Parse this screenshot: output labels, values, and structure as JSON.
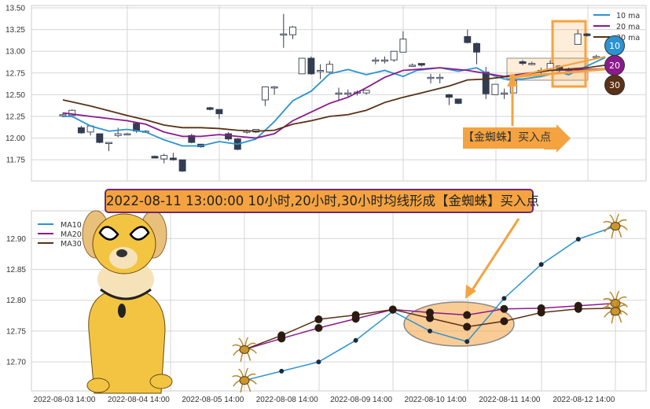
{
  "colors": {
    "ma10": "#2b93d1",
    "ma20": "#8b1a8b",
    "ma30": "#5a3216",
    "candle_down": "#333c50",
    "accent": "#f4a340",
    "banner_border": "#6b2a73"
  },
  "annotation": {
    "banner": "2022-08-11 13:00:00 10小时,20小时,30小时均线形成【金蜘蛛】买入点",
    "buy_label": "【金蜘蛛】买入点",
    "badges": [
      "10",
      "20",
      "30"
    ]
  },
  "chart_data": [
    {
      "type": "candlestick",
      "ylim": [
        11.55,
        13.52
      ],
      "yticks": [
        "13.50",
        "13.25",
        "13.00",
        "12.75",
        "12.50",
        "12.25",
        "12.00",
        "11.75"
      ],
      "ytick_values": [
        13.5,
        13.25,
        13.0,
        12.75,
        12.5,
        12.25,
        12.0,
        11.75
      ],
      "grid": true,
      "legend": {
        "placement": "top-right",
        "entries": [
          "10 ma",
          "20 ma",
          "30 ma"
        ]
      },
      "candles_ohlc": [
        [
          12.26,
          12.29,
          12.24,
          12.27
        ],
        [
          12.26,
          12.33,
          12.24,
          12.32
        ],
        [
          12.12,
          12.14,
          12.05,
          12.06
        ],
        [
          12.07,
          12.15,
          12.03,
          12.14
        ],
        [
          12.05,
          12.05,
          11.94,
          11.95
        ],
        [
          11.95,
          11.95,
          11.85,
          11.95
        ],
        [
          12.03,
          12.12,
          12.01,
          12.05
        ],
        [
          12.05,
          12.06,
          12.04,
          12.05
        ],
        [
          12.17,
          12.18,
          12.06,
          12.08
        ],
        [
          12.08,
          12.09,
          12.06,
          12.08
        ],
        [
          11.79,
          11.8,
          11.77,
          11.77
        ],
        [
          11.76,
          11.82,
          11.71,
          11.8
        ],
        [
          11.77,
          11.83,
          11.74,
          11.75
        ],
        [
          11.75,
          11.75,
          11.61,
          11.62
        ],
        [
          12.03,
          12.05,
          11.94,
          11.95
        ],
        [
          11.93,
          11.93,
          11.89,
          11.9
        ],
        [
          12.35,
          12.36,
          12.32,
          12.33
        ],
        [
          12.33,
          12.33,
          12.22,
          12.28
        ],
        [
          12.05,
          12.07,
          11.97,
          11.99
        ],
        [
          11.99,
          12.0,
          11.86,
          11.87
        ],
        [
          12.08,
          12.1,
          12.05,
          12.08
        ],
        [
          12.07,
          12.1,
          12.06,
          12.1
        ],
        [
          12.44,
          12.59,
          12.37,
          12.59
        ],
        [
          12.59,
          12.6,
          12.5,
          12.59
        ],
        [
          13.2,
          13.43,
          13.04,
          13.2
        ],
        [
          13.19,
          13.29,
          13.14,
          13.28
        ],
        [
          12.74,
          12.92,
          12.74,
          12.92
        ],
        [
          12.92,
          12.94,
          12.73,
          12.74
        ],
        [
          12.78,
          12.85,
          12.68,
          12.78
        ],
        [
          12.76,
          12.89,
          12.75,
          12.85
        ],
        [
          12.52,
          12.58,
          12.44,
          12.52
        ],
        [
          12.52,
          12.56,
          12.48,
          12.52
        ],
        [
          12.53,
          12.55,
          12.49,
          12.53
        ],
        [
          12.52,
          12.55,
          12.5,
          12.55
        ],
        [
          12.9,
          12.93,
          12.85,
          12.9
        ],
        [
          12.9,
          12.94,
          12.86,
          12.9
        ],
        [
          12.9,
          13.0,
          12.88,
          13.0
        ],
        [
          12.99,
          13.23,
          12.99,
          13.14
        ],
        [
          12.84,
          12.86,
          12.82,
          12.84
        ],
        [
          12.86,
          12.86,
          12.82,
          12.84
        ],
        [
          12.7,
          12.74,
          12.63,
          12.7
        ],
        [
          12.7,
          12.74,
          12.63,
          12.7
        ],
        [
          12.5,
          12.51,
          12.38,
          12.47
        ],
        [
          12.45,
          12.45,
          12.39,
          12.4
        ],
        [
          13.17,
          13.25,
          13.09,
          13.1
        ],
        [
          13.09,
          13.1,
          12.85,
          12.99
        ],
        [
          12.76,
          12.82,
          12.45,
          12.51
        ],
        [
          12.5,
          12.62,
          12.5,
          12.62
        ],
        [
          12.52,
          12.57,
          12.45,
          12.52
        ],
        [
          12.52,
          12.66,
          12.52,
          12.66
        ],
        [
          12.88,
          12.9,
          12.84,
          12.86
        ],
        [
          12.86,
          12.88,
          12.84,
          12.86
        ],
        [
          12.78,
          12.81,
          12.72,
          12.78
        ],
        [
          12.78,
          12.9,
          12.78,
          12.86
        ],
        [
          12.83,
          12.84,
          12.74,
          12.8
        ],
        [
          12.79,
          12.81,
          12.77,
          12.79
        ],
        [
          13.08,
          13.25,
          13.08,
          13.2
        ],
        [
          13.2,
          13.21,
          13.17,
          13.18
        ],
        [
          12.94,
          12.96,
          12.92,
          12.94
        ]
      ],
      "series": [
        {
          "name": "10 ma",
          "points": [
            [
              0,
              12.25
            ],
            [
              1,
              12.25
            ],
            [
              3,
              12.14
            ],
            [
              5,
              12.08
            ],
            [
              7,
              12.1
            ],
            [
              9,
              12.07
            ],
            [
              11,
              11.98
            ],
            [
              13,
              11.91
            ],
            [
              15,
              11.91
            ],
            [
              17,
              11.96
            ],
            [
              19,
              11.93
            ],
            [
              21,
              11.99
            ],
            [
              23,
              12.19
            ],
            [
              25,
              12.43
            ],
            [
              27,
              12.54
            ],
            [
              29,
              12.74
            ],
            [
              31,
              12.79
            ],
            [
              33,
              12.73
            ],
            [
              35,
              12.78
            ],
            [
              37,
              12.71
            ],
            [
              38.5,
              12.78
            ],
            [
              41,
              12.81
            ],
            [
              43,
              12.77
            ],
            [
              45,
              12.81
            ],
            [
              46,
              12.75
            ],
            [
              48,
              12.68
            ],
            [
              50,
              12.68
            ],
            [
              52,
              12.71
            ],
            [
              54,
              12.76
            ],
            [
              55,
              12.73
            ],
            [
              57,
              12.83
            ],
            [
              59,
              12.93
            ]
          ]
        },
        {
          "name": "20 ma",
          "points": [
            [
              0,
              12.29
            ],
            [
              3,
              12.25
            ],
            [
              7,
              12.2
            ],
            [
              9,
              12.16
            ],
            [
              11,
              12.07
            ],
            [
              13,
              12.02
            ],
            [
              15,
              12.02
            ],
            [
              17,
              12.04
            ],
            [
              19,
              12.02
            ],
            [
              21,
              12.0
            ],
            [
              23,
              12.05
            ],
            [
              25,
              12.2
            ],
            [
              27,
              12.3
            ],
            [
              29,
              12.4
            ],
            [
              31,
              12.47
            ],
            [
              33,
              12.58
            ],
            [
              35,
              12.7
            ],
            [
              37,
              12.78
            ],
            [
              41,
              12.81
            ],
            [
              44,
              12.78
            ],
            [
              48,
              12.71
            ],
            [
              50,
              12.74
            ],
            [
              53,
              12.78
            ],
            [
              57,
              12.79
            ],
            [
              59,
              12.8
            ]
          ]
        },
        {
          "name": "30 ma",
          "points": [
            [
              0,
              12.44
            ],
            [
              3,
              12.37
            ],
            [
              7,
              12.26
            ],
            [
              9,
              12.21
            ],
            [
              11,
              12.15
            ],
            [
              13,
              12.12
            ],
            [
              15,
              12.12
            ],
            [
              17,
              12.11
            ],
            [
              19,
              12.09
            ],
            [
              21,
              12.08
            ],
            [
              23,
              12.09
            ],
            [
              25,
              12.16
            ],
            [
              27,
              12.2
            ],
            [
              29,
              12.25
            ],
            [
              31,
              12.27
            ],
            [
              33,
              12.32
            ],
            [
              35,
              12.41
            ],
            [
              37,
              12.47
            ],
            [
              39,
              12.52
            ],
            [
              42,
              12.6
            ],
            [
              44,
              12.67
            ],
            [
              46,
              12.68
            ],
            [
              50,
              12.73
            ],
            [
              53,
              12.78
            ],
            [
              57,
              12.81
            ],
            [
              59,
              12.84
            ]
          ]
        }
      ]
    },
    {
      "type": "line",
      "ylim": [
        12.653,
        12.945
      ],
      "yticks": [
        "12.90",
        "12.85",
        "12.80",
        "12.75",
        "12.70"
      ],
      "ytick_values": [
        12.9,
        12.85,
        12.8,
        12.75,
        12.7
      ],
      "xtick_labels": [
        "2022-08-03 14:00",
        "2022-08-04 14:00",
        "2022-08-05 14:00",
        "2022-08-08 14:00",
        "2022-08-09 14:00",
        "2022-08-10 14:00",
        "2022-08-11 14:00",
        "2022-08-12 14:00"
      ],
      "grid": true,
      "legend": {
        "placement": "top-left",
        "entries": [
          "MA10",
          "MA20",
          "MA30"
        ]
      },
      "series": [
        {
          "name": "MA10",
          "values": [
            12.67,
            12.685,
            12.7,
            12.735,
            12.782,
            12.75,
            12.733,
            12.803,
            12.858,
            12.899,
            12.92
          ]
        },
        {
          "name": "MA20",
          "values": [
            12.72,
            12.738,
            12.755,
            12.77,
            12.785,
            12.78,
            12.776,
            12.786,
            12.787,
            12.791,
            12.795
          ]
        },
        {
          "name": "MA30",
          "values": [
            12.72,
            12.743,
            12.769,
            12.776,
            12.785,
            12.771,
            12.757,
            12.766,
            12.78,
            12.786,
            12.787
          ]
        }
      ]
    }
  ]
}
